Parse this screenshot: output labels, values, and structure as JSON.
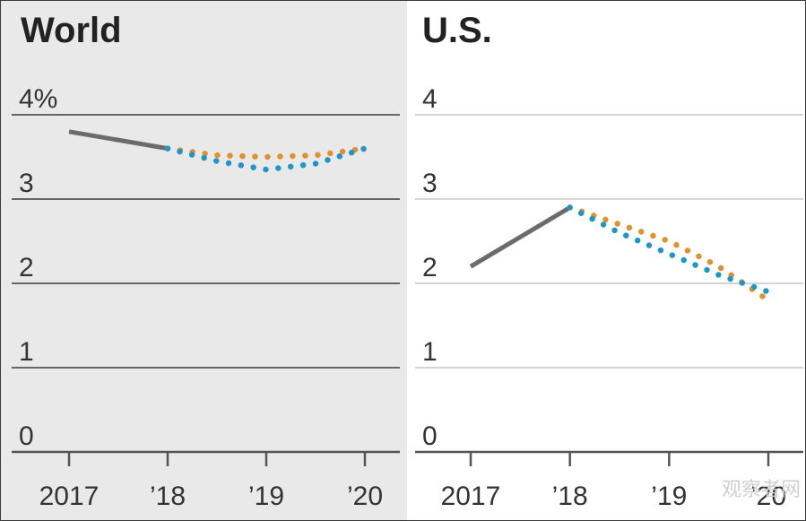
{
  "chart_data": [
    {
      "type": "line",
      "title": "World",
      "y_ticks": [
        {
          "value": 0,
          "label": "0"
        },
        {
          "value": 1,
          "label": "1"
        },
        {
          "value": 2,
          "label": "2"
        },
        {
          "value": 3,
          "label": "3"
        },
        {
          "value": 4,
          "label": "4%"
        }
      ],
      "ylim": [
        0,
        4
      ],
      "x_ticks": [
        {
          "value": 2017,
          "label": "2017"
        },
        {
          "value": 2018,
          "label": "’18"
        },
        {
          "value": 2019,
          "label": "’19"
        },
        {
          "value": 2020,
          "label": "’20"
        }
      ],
      "xlim": [
        2017,
        2020
      ],
      "grid": true,
      "background": "#e9e9e9",
      "series": [
        {
          "style": "solid",
          "color": "#6b6b6b",
          "x": [
            2017,
            2018
          ],
          "y": [
            3.8,
            3.6
          ]
        },
        {
          "style": "dotted",
          "color": "#e0912e",
          "x": [
            2018,
            2018.5,
            2019,
            2019.5,
            2020
          ],
          "y": [
            3.6,
            3.52,
            3.5,
            3.52,
            3.6
          ]
        },
        {
          "style": "dotted",
          "color": "#1f96c8",
          "x": [
            2018,
            2018.5,
            2019,
            2019.5,
            2020
          ],
          "y": [
            3.6,
            3.45,
            3.35,
            3.42,
            3.6
          ]
        }
      ]
    },
    {
      "type": "line",
      "title": "U.S.",
      "y_ticks": [
        {
          "value": 0,
          "label": "0"
        },
        {
          "value": 1,
          "label": "1"
        },
        {
          "value": 2,
          "label": "2"
        },
        {
          "value": 3,
          "label": "3"
        },
        {
          "value": 4,
          "label": "4"
        }
      ],
      "ylim": [
        0,
        4
      ],
      "x_ticks": [
        {
          "value": 2017,
          "label": "2017"
        },
        {
          "value": 2018,
          "label": "’18"
        },
        {
          "value": 2019,
          "label": "’19"
        },
        {
          "value": 2020,
          "label": "’20"
        }
      ],
      "xlim": [
        2017,
        2020
      ],
      "grid": true,
      "background": "#ffffff",
      "series": [
        {
          "style": "solid",
          "color": "#6b6b6b",
          "x": [
            2017,
            2018
          ],
          "y": [
            2.2,
            2.9
          ]
        },
        {
          "style": "dotted",
          "color": "#e0912e",
          "x": [
            2018,
            2018.5,
            2019,
            2019.5,
            2020
          ],
          "y": [
            2.9,
            2.7,
            2.5,
            2.2,
            1.8
          ]
        },
        {
          "style": "dotted",
          "color": "#1f96c8",
          "x": [
            2018,
            2018.5,
            2019,
            2019.5,
            2020
          ],
          "y": [
            2.9,
            2.6,
            2.35,
            2.1,
            1.9
          ]
        }
      ]
    }
  ],
  "watermark": "观察者网"
}
